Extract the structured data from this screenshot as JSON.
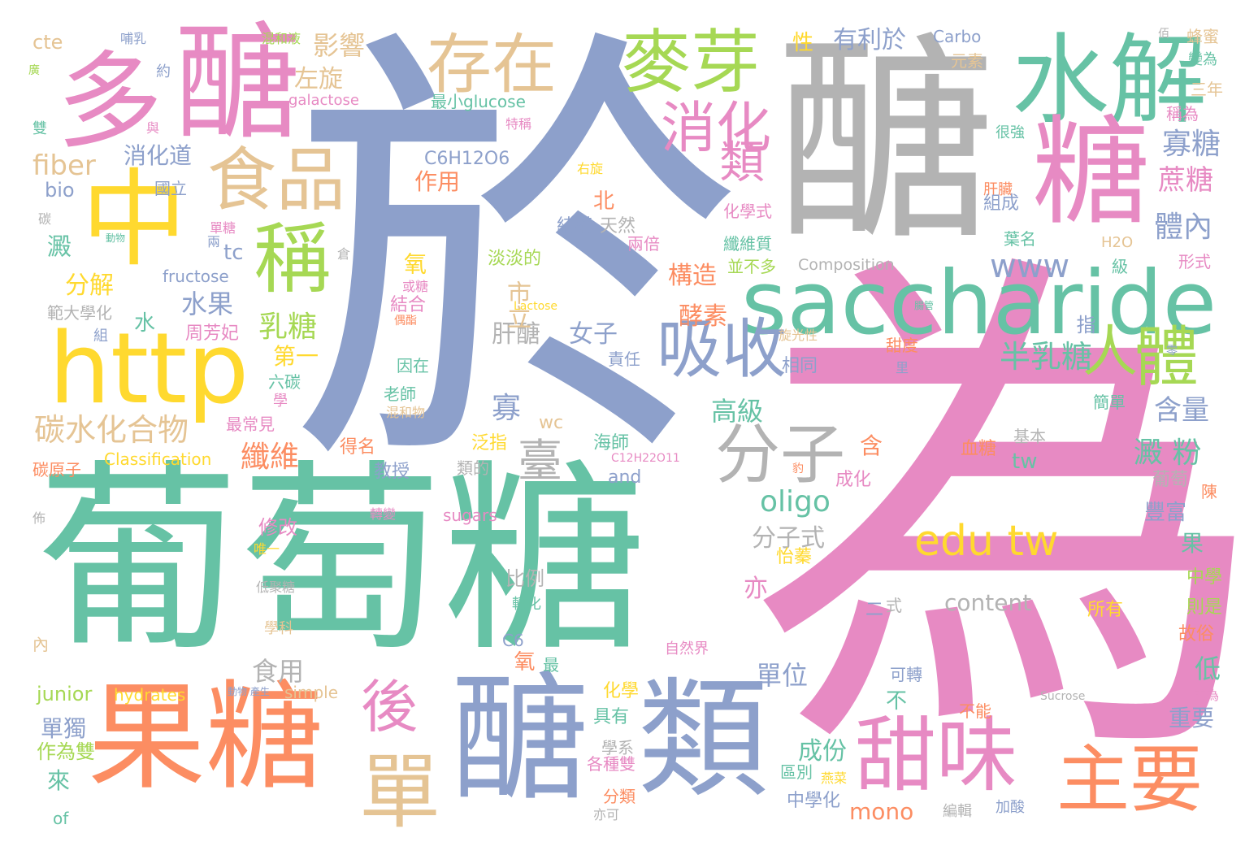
{
  "palette": {
    "green": "#66c2a5",
    "orange": "#fc8d62",
    "blue": "#8da0cb",
    "pink": "#e78ac3",
    "lime": "#a6d854",
    "yellow": "#ffd92f",
    "tan": "#e5c494",
    "gray": "#b3b3b3"
  },
  "words": [
    {
      "text": "於",
      "c": "blue"
    },
    {
      "text": "為",
      "c": "pink"
    },
    {
      "text": "葡萄糖",
      "c": "green"
    },
    {
      "text": "醣",
      "c": "gray"
    },
    {
      "text": "醣",
      "c": "pink"
    },
    {
      "text": "多",
      "c": "pink"
    },
    {
      "text": "中",
      "c": "yellow"
    },
    {
      "text": "http",
      "c": "yellow"
    },
    {
      "text": "果糖",
      "c": "orange"
    },
    {
      "text": "醣",
      "c": "blue"
    },
    {
      "text": "類",
      "c": "blue"
    },
    {
      "text": "saccharide",
      "c": "green"
    },
    {
      "text": "水解",
      "c": "green"
    },
    {
      "text": "糖",
      "c": "pink"
    },
    {
      "text": "麥芽",
      "c": "lime"
    },
    {
      "text": "存在",
      "c": "tan"
    },
    {
      "text": "食品",
      "c": "tan"
    },
    {
      "text": "稱",
      "c": "lime"
    },
    {
      "text": "消化",
      "c": "pink"
    },
    {
      "text": "吸收",
      "c": "blue"
    },
    {
      "text": "分子",
      "c": "gray"
    },
    {
      "text": "人",
      "c": "lime"
    },
    {
      "text": "體",
      "c": "lime"
    },
    {
      "text": "甜味",
      "c": "pink"
    },
    {
      "text": "主要",
      "c": "orange"
    },
    {
      "text": "edu tw",
      "c": "yellow"
    },
    {
      "text": "後",
      "c": "pink"
    },
    {
      "text": "單",
      "c": "tan"
    },
    {
      "text": "碳水化合物",
      "c": "tan"
    },
    {
      "text": "臺",
      "c": "gray"
    },
    {
      "text": "類",
      "c": "pink"
    },
    {
      "text": "寡糖",
      "c": "blue"
    },
    {
      "text": "蔗糖",
      "c": "pink"
    },
    {
      "text": "體內",
      "c": "blue"
    },
    {
      "text": "半乳糖",
      "c": "green"
    },
    {
      "text": "含量",
      "c": "blue"
    },
    {
      "text": "澱 粉",
      "c": "green"
    },
    {
      "text": "www",
      "c": "blue"
    },
    {
      "text": "oligo",
      "c": "green"
    },
    {
      "text": "分子式",
      "c": "gray"
    },
    {
      "text": "content",
      "c": "gray"
    },
    {
      "text": "mono",
      "c": "orange"
    },
    {
      "text": "成份",
      "c": "green"
    },
    {
      "text": "單位",
      "c": "blue"
    },
    {
      "text": "低",
      "c": "green"
    },
    {
      "text": "重要",
      "c": "blue"
    },
    {
      "text": "纖維",
      "c": "orange"
    },
    {
      "text": "乳糖",
      "c": "lime"
    },
    {
      "text": "第一",
      "c": "yellow"
    },
    {
      "text": "水果",
      "c": "blue"
    },
    {
      "text": "分解",
      "c": "yellow"
    },
    {
      "text": "fiber",
      "c": "tan"
    },
    {
      "text": "消化道",
      "c": "blue"
    },
    {
      "text": "影響",
      "c": "tan"
    },
    {
      "text": "左旋",
      "c": "tan"
    },
    {
      "text": "有利於",
      "c": "blue"
    },
    {
      "text": "構造",
      "c": "orange"
    },
    {
      "text": "酵素",
      "c": "orange"
    },
    {
      "text": "肝醣",
      "c": "gray"
    },
    {
      "text": "女子",
      "c": "blue"
    },
    {
      "text": "市立",
      "c": "tan"
    },
    {
      "text": "作用",
      "c": "orange"
    },
    {
      "text": "高級",
      "c": "green"
    },
    {
      "text": "寡",
      "c": "blue"
    },
    {
      "text": "junior",
      "c": "lime"
    },
    {
      "text": "hydrates",
      "c": "yellow"
    },
    {
      "text": "食用",
      "c": "gray"
    },
    {
      "text": "單獨",
      "c": "blue"
    },
    {
      "text": "作為雙",
      "c": "lime"
    },
    {
      "text": "來",
      "c": "green"
    },
    {
      "text": "of",
      "c": "green"
    },
    {
      "text": "bio",
      "c": "blue"
    },
    {
      "text": "cte",
      "c": "tan"
    },
    {
      "text": "C6H12O6",
      "c": "blue"
    },
    {
      "text": "Carbo",
      "c": "blue"
    },
    {
      "text": "Classification",
      "c": "yellow"
    },
    {
      "text": "Composition",
      "c": "gray"
    },
    {
      "text": "galactose",
      "c": "pink"
    },
    {
      "text": "fructose",
      "c": "blue"
    },
    {
      "text": "sugars",
      "c": "pink"
    },
    {
      "text": "simple",
      "c": "tan"
    },
    {
      "text": "最小glucose",
      "c": "green"
    },
    {
      "text": "Lactose",
      "c": "yellow"
    },
    {
      "text": "C12H22O11",
      "c": "pink"
    },
    {
      "text": "Sucrose",
      "c": "gray"
    },
    {
      "text": "H2O",
      "c": "tan"
    },
    {
      "text": "wc",
      "c": "tan"
    },
    {
      "text": "tc",
      "c": "blue"
    },
    {
      "text": "tw",
      "c": "green"
    },
    {
      "text": "and",
      "c": "blue"
    },
    {
      "text": "C6",
      "c": "blue"
    },
    {
      "text": "性",
      "c": "yellow"
    },
    {
      "text": "元素",
      "c": "tan"
    },
    {
      "text": "三年",
      "c": "tan"
    },
    {
      "text": "稱為",
      "c": "pink"
    },
    {
      "text": "蜂蜜",
      "c": "tan"
    },
    {
      "text": "變為",
      "c": "green"
    },
    {
      "text": "很強",
      "c": "green"
    },
    {
      "text": "肝臟",
      "c": "orange"
    },
    {
      "text": "組成",
      "c": "blue"
    },
    {
      "text": "葉名",
      "c": "green"
    },
    {
      "text": "形式",
      "c": "pink"
    },
    {
      "text": "級",
      "c": "green"
    },
    {
      "text": "指",
      "c": "blue"
    },
    {
      "text": "甜度",
      "c": "orange"
    },
    {
      "text": "相同",
      "c": "blue"
    },
    {
      "text": "旋光性",
      "c": "tan"
    },
    {
      "text": "責任",
      "c": "blue"
    },
    {
      "text": "血糖",
      "c": "orange"
    },
    {
      "text": "基本",
      "c": "gray"
    },
    {
      "text": "簡單",
      "c": "green"
    },
    {
      "text": "葡萄",
      "c": "gray"
    },
    {
      "text": "豐富",
      "c": "blue"
    },
    {
      "text": "果",
      "c": "green"
    },
    {
      "text": "中學",
      "c": "lime"
    },
    {
      "text": "則是",
      "c": "lime"
    },
    {
      "text": "故俗",
      "c": "orange"
    },
    {
      "text": "所有",
      "c": "yellow"
    },
    {
      "text": "成化",
      "c": "pink"
    },
    {
      "text": "不能",
      "c": "orange"
    },
    {
      "text": "區別",
      "c": "green"
    },
    {
      "text": "中學化",
      "c": "blue"
    },
    {
      "text": "加酸",
      "c": "blue"
    },
    {
      "text": "編輯",
      "c": "gray"
    },
    {
      "text": "可轉",
      "c": "blue"
    },
    {
      "text": "成為",
      "c": "pink"
    },
    {
      "text": "陳",
      "c": "orange"
    },
    {
      "text": "怡蓁",
      "c": "yellow"
    },
    {
      "text": "二",
      "c": "blue"
    },
    {
      "text": "式",
      "c": "gray"
    },
    {
      "text": "亦",
      "c": "pink"
    },
    {
      "text": "比例",
      "c": "gray"
    },
    {
      "text": "轉化",
      "c": "green"
    },
    {
      "text": "海師",
      "c": "green"
    },
    {
      "text": "泛指",
      "c": "yellow"
    },
    {
      "text": "類的",
      "c": "gray"
    },
    {
      "text": "自然界",
      "c": "pink"
    },
    {
      "text": "化學",
      "c": "yellow"
    },
    {
      "text": "具有",
      "c": "green"
    },
    {
      "text": "學系",
      "c": "gray"
    },
    {
      "text": "各種雙",
      "c": "pink"
    },
    {
      "text": "分類",
      "c": "orange"
    },
    {
      "text": "亦可",
      "c": "gray"
    },
    {
      "text": "氧",
      "c": "orange"
    },
    {
      "text": "最",
      "c": "green"
    },
    {
      "text": "含",
      "c": "orange"
    },
    {
      "text": "不",
      "c": "green"
    },
    {
      "text": "修改",
      "c": "pink"
    },
    {
      "text": "唯一",
      "c": "yellow"
    },
    {
      "text": "低聚糖",
      "c": "gray"
    },
    {
      "text": "學科",
      "c": "tan"
    },
    {
      "text": "內",
      "c": "tan"
    },
    {
      "text": "轉變",
      "c": "pink"
    },
    {
      "text": "教授",
      "c": "blue"
    },
    {
      "text": "得名",
      "c": "orange"
    },
    {
      "text": "碳原子",
      "c": "orange"
    },
    {
      "text": "最常見",
      "c": "pink"
    },
    {
      "text": "學",
      "c": "pink"
    },
    {
      "text": "六碳",
      "c": "green"
    },
    {
      "text": "周芳妃",
      "c": "pink"
    },
    {
      "text": "水",
      "c": "green"
    },
    {
      "text": "組",
      "c": "blue"
    },
    {
      "text": "範大學化",
      "c": "gray"
    },
    {
      "text": "老師",
      "c": "green"
    },
    {
      "text": "因在",
      "c": "green"
    },
    {
      "text": "結合",
      "c": "pink"
    },
    {
      "text": "氧",
      "c": "yellow"
    },
    {
      "text": "或糖",
      "c": "pink"
    },
    {
      "text": "淡淡的",
      "c": "lime"
    },
    {
      "text": "結構",
      "c": "blue"
    },
    {
      "text": "天然",
      "c": "gray"
    },
    {
      "text": "兩倍",
      "c": "pink"
    },
    {
      "text": "化學式",
      "c": "pink"
    },
    {
      "text": "纖維質",
      "c": "green"
    },
    {
      "text": "並不多",
      "c": "lime"
    },
    {
      "text": "北",
      "c": "orange"
    },
    {
      "text": "國立",
      "c": "blue"
    },
    {
      "text": "右旋",
      "c": "yellow"
    },
    {
      "text": "特稱",
      "c": "pink"
    },
    {
      "text": "單糖",
      "c": "pink"
    },
    {
      "text": "動物",
      "c": "green"
    },
    {
      "text": "兩",
      "c": "blue"
    },
    {
      "text": "澱",
      "c": "green"
    },
    {
      "text": "碳",
      "c": "gray"
    },
    {
      "text": "雙",
      "c": "green"
    },
    {
      "text": "廣",
      "c": "lime"
    },
    {
      "text": "約",
      "c": "blue"
    },
    {
      "text": "與",
      "c": "pink"
    },
    {
      "text": "哺乳",
      "c": "blue"
    },
    {
      "text": "混和液",
      "c": "lime"
    },
    {
      "text": "佰",
      "c": "gray"
    },
    {
      "text": "動物 產生",
      "c": "blue"
    },
    {
      "text": "倉",
      "c": "gray"
    },
    {
      "text": "混和物",
      "c": "tan"
    },
    {
      "text": "偶酯",
      "c": "orange"
    },
    {
      "text": "腸管",
      "c": "green"
    },
    {
      "text": "里",
      "c": "blue"
    },
    {
      "text": "佈",
      "c": "gray"
    },
    {
      "text": "零",
      "c": "blue"
    },
    {
      "text": "豹",
      "c": "orange"
    },
    {
      "text": "燕菜",
      "c": "yellow"
    }
  ]
}
